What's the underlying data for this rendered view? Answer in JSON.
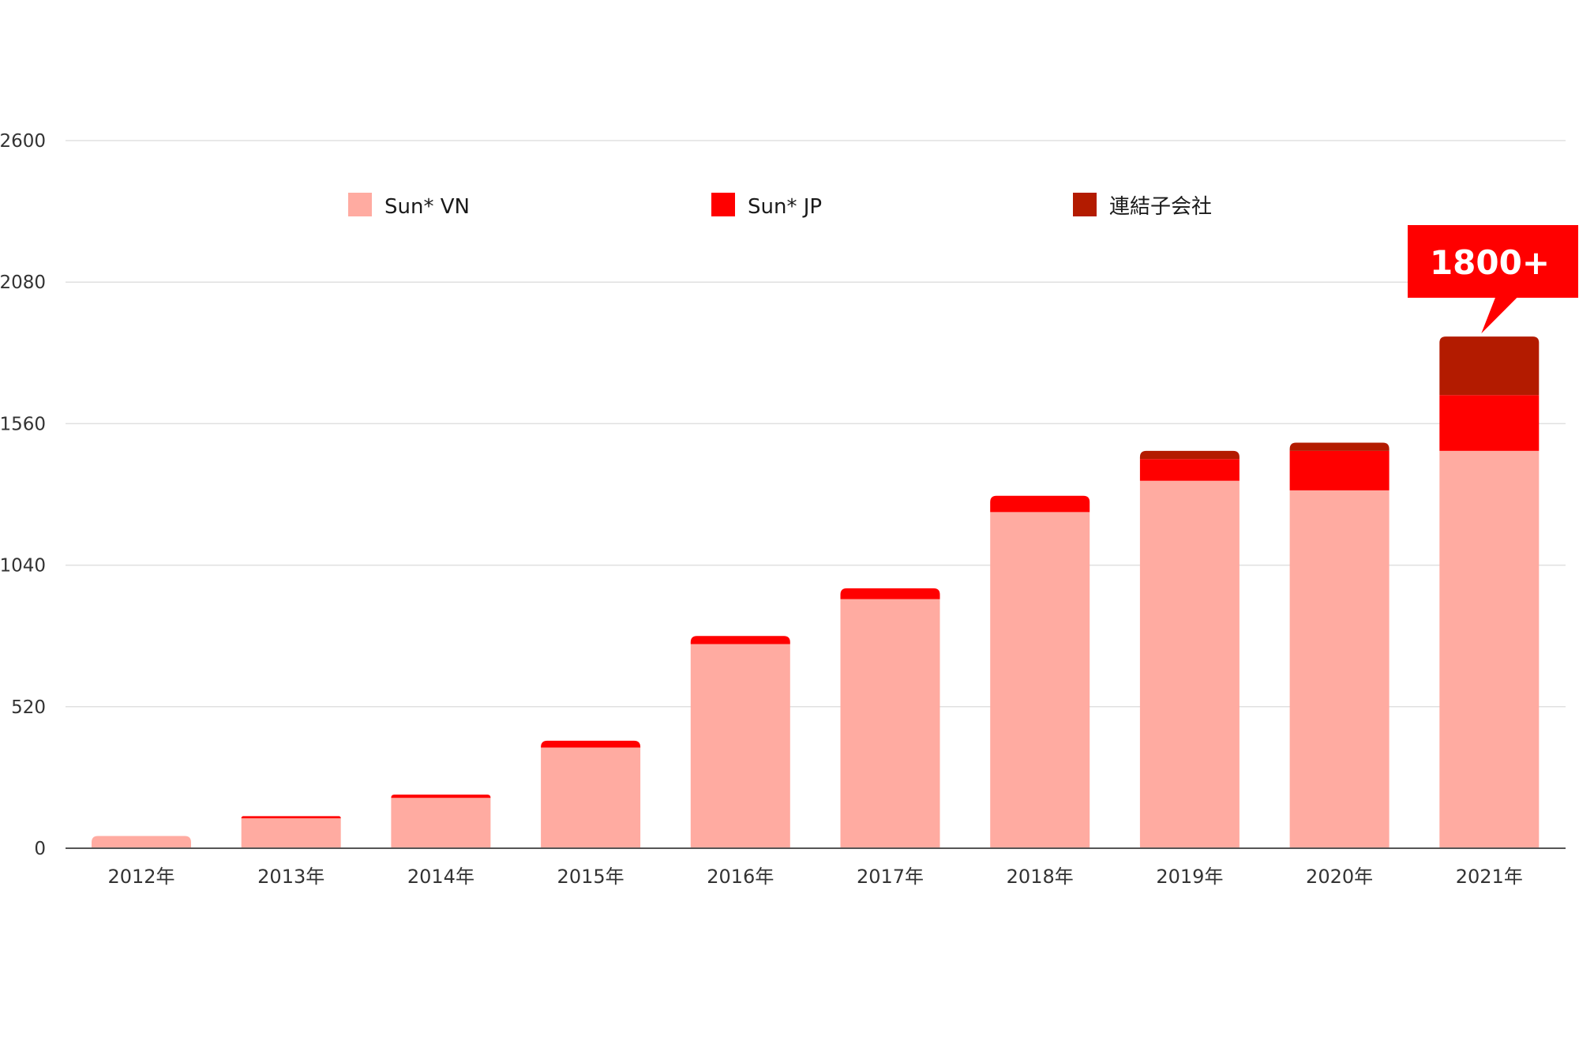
{
  "chart_data": {
    "type": "bar",
    "stacked": true,
    "categories": [
      "2012年",
      "2013年",
      "2014年",
      "2015年",
      "2016年",
      "2017年",
      "2018年",
      "2019年",
      "2020年",
      "2021年"
    ],
    "series": [
      {
        "name": "Sun* VN",
        "color": "#ffaba1",
        "values": [
          45,
          110,
          185,
          370,
          750,
          915,
          1235,
          1350,
          1315,
          1460
        ]
      },
      {
        "name": "Sun* JP",
        "color": "#ff0000",
        "values": [
          0,
          8,
          12,
          25,
          30,
          40,
          60,
          80,
          145,
          205
        ]
      },
      {
        "name": "連結子会社",
        "color": "#b31b00",
        "values": [
          0,
          0,
          0,
          0,
          0,
          0,
          0,
          30,
          30,
          215
        ]
      }
    ],
    "y_ticks": [
      "0",
      "520",
      "1040",
      "1560",
      "2080",
      "2600"
    ],
    "ylim": [
      0,
      2600
    ],
    "grid": true,
    "legend_position": "top",
    "annotation": {
      "category": "2021年",
      "text": "1800+",
      "color": "#ff0000"
    }
  }
}
